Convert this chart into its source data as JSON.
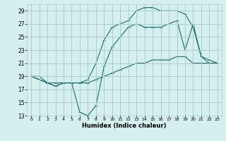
{
  "title": "",
  "xlabel": "Humidex (Indice chaleur)",
  "ylabel": "",
  "bg_color": "#d5eeee",
  "grid_color": "#aacccc",
  "line_color": "#1a6b6b",
  "xlim": [
    -0.5,
    23.5
  ],
  "ylim": [
    13,
    30
  ],
  "xticks": [
    0,
    1,
    2,
    3,
    4,
    5,
    6,
    7,
    8,
    9,
    10,
    11,
    12,
    13,
    14,
    15,
    16,
    17,
    18,
    19,
    20,
    21,
    22,
    23
  ],
  "yticks": [
    13,
    15,
    17,
    19,
    21,
    23,
    25,
    27,
    29
  ],
  "line1_x": [
    0,
    1,
    2,
    3,
    4,
    5,
    6,
    7,
    8,
    9,
    10,
    11,
    12,
    13,
    14,
    15,
    16,
    17,
    18,
    19,
    20,
    21,
    22,
    23
  ],
  "line1_y": [
    19,
    19,
    18,
    17.5,
    18,
    18,
    18,
    18,
    18.5,
    19,
    19.5,
    20,
    20.5,
    21,
    21,
    21.5,
    21.5,
    21.5,
    22,
    22,
    21,
    21,
    21,
    21
  ],
  "line2_x": [
    0,
    2,
    3,
    4,
    5,
    6,
    7,
    8,
    9,
    10,
    11,
    12,
    13,
    14,
    15,
    16,
    17,
    18,
    19,
    20,
    21,
    22,
    23
  ],
  "line2_y": [
    19,
    18,
    17.5,
    18,
    18,
    13.5,
    13,
    14.5,
    20.5,
    23.5,
    25,
    26.5,
    27,
    26.5,
    26.5,
    26.5,
    27,
    27.5,
    23,
    27,
    22,
    21.5,
    21
  ],
  "line3_x": [
    0,
    2,
    3,
    4,
    5,
    6,
    7,
    8,
    9,
    10,
    11,
    12,
    13,
    14,
    15,
    16,
    17,
    18,
    19,
    20,
    21,
    22,
    23
  ],
  "line3_y": [
    19,
    18,
    18,
    18,
    18,
    18,
    18.5,
    21,
    24.5,
    26.5,
    27,
    27.5,
    29,
    29.5,
    29.5,
    29,
    29,
    29,
    28.5,
    26.5,
    22,
    21,
    21
  ]
}
